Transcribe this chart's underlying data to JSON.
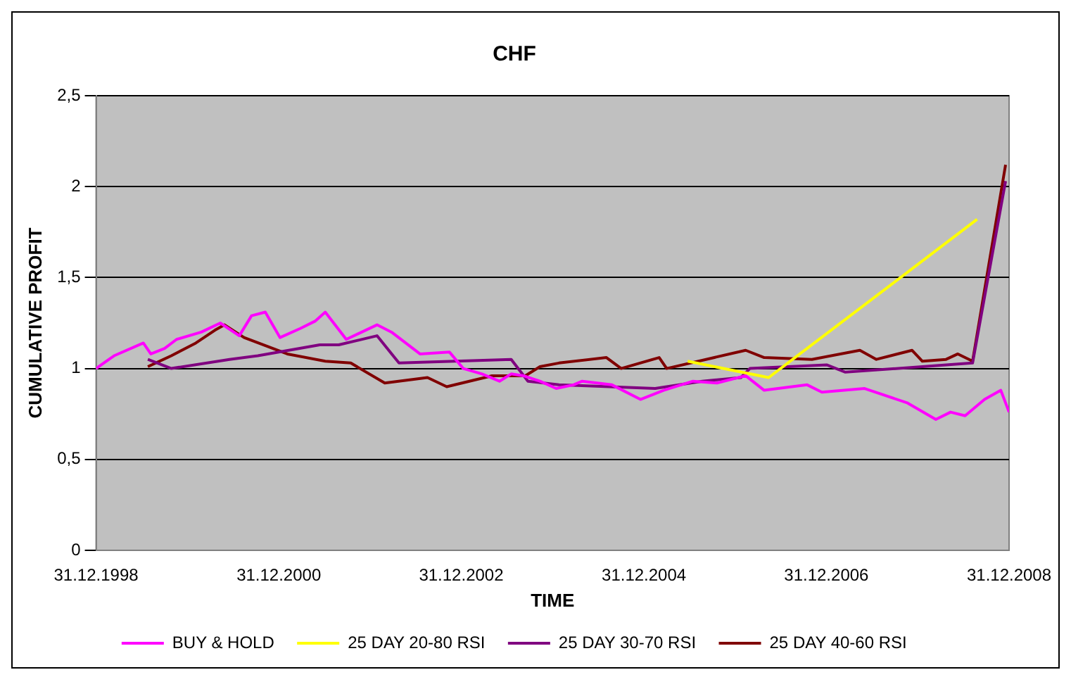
{
  "chart_data": {
    "type": "line",
    "title": "CHF",
    "xlabel": "TIME",
    "ylabel": "CUMULATIVE PROFIT",
    "xlim": [
      "1998-12-31",
      "2008-12-31"
    ],
    "xticks": [
      {
        "value": "1998-12-31",
        "label": "31.12.1998"
      },
      {
        "value": "2000-12-31",
        "label": "31.12.2000"
      },
      {
        "value": "2002-12-31",
        "label": "31.12.2002"
      },
      {
        "value": "2004-12-31",
        "label": "31.12.2004"
      },
      {
        "value": "2006-12-31",
        "label": "31.12.2006"
      },
      {
        "value": "2008-12-31",
        "label": "31.12.2008"
      }
    ],
    "ylim": [
      0,
      2.5
    ],
    "yticks": [
      0,
      {
        "value": 0.5,
        "label": "0,5"
      },
      1,
      {
        "value": 1.5,
        "label": "1,5"
      },
      2,
      {
        "value": 2.5,
        "label": "2,5"
      }
    ],
    "grid": "y",
    "legend": "bottom",
    "marker": "none",
    "line_style": "solid",
    "series": [
      {
        "name": "BUY & HOLD",
        "color": "#ff00ff",
        "x": [
          "1998-12-31",
          "1999-03-13",
          "1999-07-08",
          "1999-08-07",
          "1999-10-01",
          "1999-11-18",
          "2000-02-25",
          "2000-05-11",
          "2000-07-26",
          "2000-09-13",
          "2000-11-07",
          "2001-01-05",
          "2001-03-27",
          "2001-05-25",
          "2001-07-05",
          "2001-09-27",
          "2002-01-28",
          "2002-03-27",
          "2002-07-19",
          "2002-11-14",
          "2003-01-08",
          "2003-03-24",
          "2003-06-02",
          "2003-07-19",
          "2003-09-06",
          "2003-11-11",
          "2004-01-15",
          "2004-03-24",
          "2004-04-28",
          "2004-08-25",
          "2004-12-17",
          "2005-03-20",
          "2005-07-15",
          "2005-10-19",
          "2006-02-11",
          "2006-04-26",
          "2006-10-15",
          "2006-12-13",
          "2007-06-02",
          "2007-11-21",
          "2008-03-13",
          "2008-05-11",
          "2008-07-08",
          "2008-09-24",
          "2008-11-28",
          "2008-12-31"
        ],
        "values": [
          1.0,
          1.07,
          1.14,
          1.08,
          1.11,
          1.16,
          1.2,
          1.25,
          1.18,
          1.29,
          1.31,
          1.17,
          1.22,
          1.26,
          1.31,
          1.16,
          1.24,
          1.2,
          1.08,
          1.09,
          1.0,
          0.97,
          0.93,
          0.97,
          0.96,
          0.93,
          0.89,
          0.91,
          0.93,
          0.91,
          0.83,
          0.88,
          0.93,
          0.92,
          0.96,
          0.88,
          0.91,
          0.87,
          0.89,
          0.81,
          0.72,
          0.76,
          0.74,
          0.83,
          0.88,
          0.76
        ]
      },
      {
        "name": "25 DAY 20-80 RSI",
        "color": "#ffff00",
        "x": [
          "2005-06-24",
          "2006-05-14",
          "2008-08-25"
        ],
        "values": [
          1.04,
          0.95,
          1.82
        ]
      },
      {
        "name": "25 DAY 30-70 RSI",
        "color": "#800080",
        "x": [
          "1999-07-26",
          "1999-10-28",
          "2000-06-17",
          "2000-10-08",
          "2001-06-13",
          "2001-08-28",
          "2002-01-28",
          "2002-04-26",
          "2003-07-19",
          "2003-09-24",
          "2004-01-26",
          "2005-02-14",
          "2005-08-21",
          "2006-01-23",
          "2006-02-28",
          "2007-01-01",
          "2007-03-17",
          "2008-01-19",
          "2008-08-07",
          "2008-12-17"
        ],
        "values": [
          1.05,
          1.0,
          1.05,
          1.07,
          1.13,
          1.13,
          1.18,
          1.03,
          1.05,
          0.93,
          0.91,
          0.89,
          0.93,
          0.95,
          1.0,
          1.02,
          0.98,
          1.01,
          1.03,
          2.03
        ]
      },
      {
        "name": "25 DAY 40-60 RSI",
        "color": "#800000",
        "x": [
          "1999-07-26",
          "1999-10-28",
          "2000-02-03",
          "2000-04-19",
          "2000-05-28",
          "2000-08-14",
          "2001-02-03",
          "2001-07-05",
          "2001-10-15",
          "2002-02-28",
          "2002-08-18",
          "2002-11-03",
          "2003-05-03",
          "2003-09-13",
          "2003-11-11",
          "2004-01-26",
          "2004-08-03",
          "2004-10-01",
          "2005-03-02",
          "2005-04-01",
          "2006-02-11",
          "2006-04-26",
          "2006-11-03",
          "2007-05-14",
          "2007-07-19",
          "2007-12-09",
          "2008-01-19",
          "2008-04-23",
          "2008-06-09",
          "2008-08-07",
          "2008-12-17"
        ],
        "values": [
          1.01,
          1.07,
          1.14,
          1.21,
          1.24,
          1.17,
          1.08,
          1.04,
          1.03,
          0.92,
          0.95,
          0.9,
          0.96,
          0.96,
          1.01,
          1.03,
          1.06,
          1.0,
          1.06,
          1.0,
          1.1,
          1.06,
          1.05,
          1.1,
          1.05,
          1.1,
          1.04,
          1.05,
          1.08,
          1.04,
          2.12
        ]
      }
    ]
  }
}
